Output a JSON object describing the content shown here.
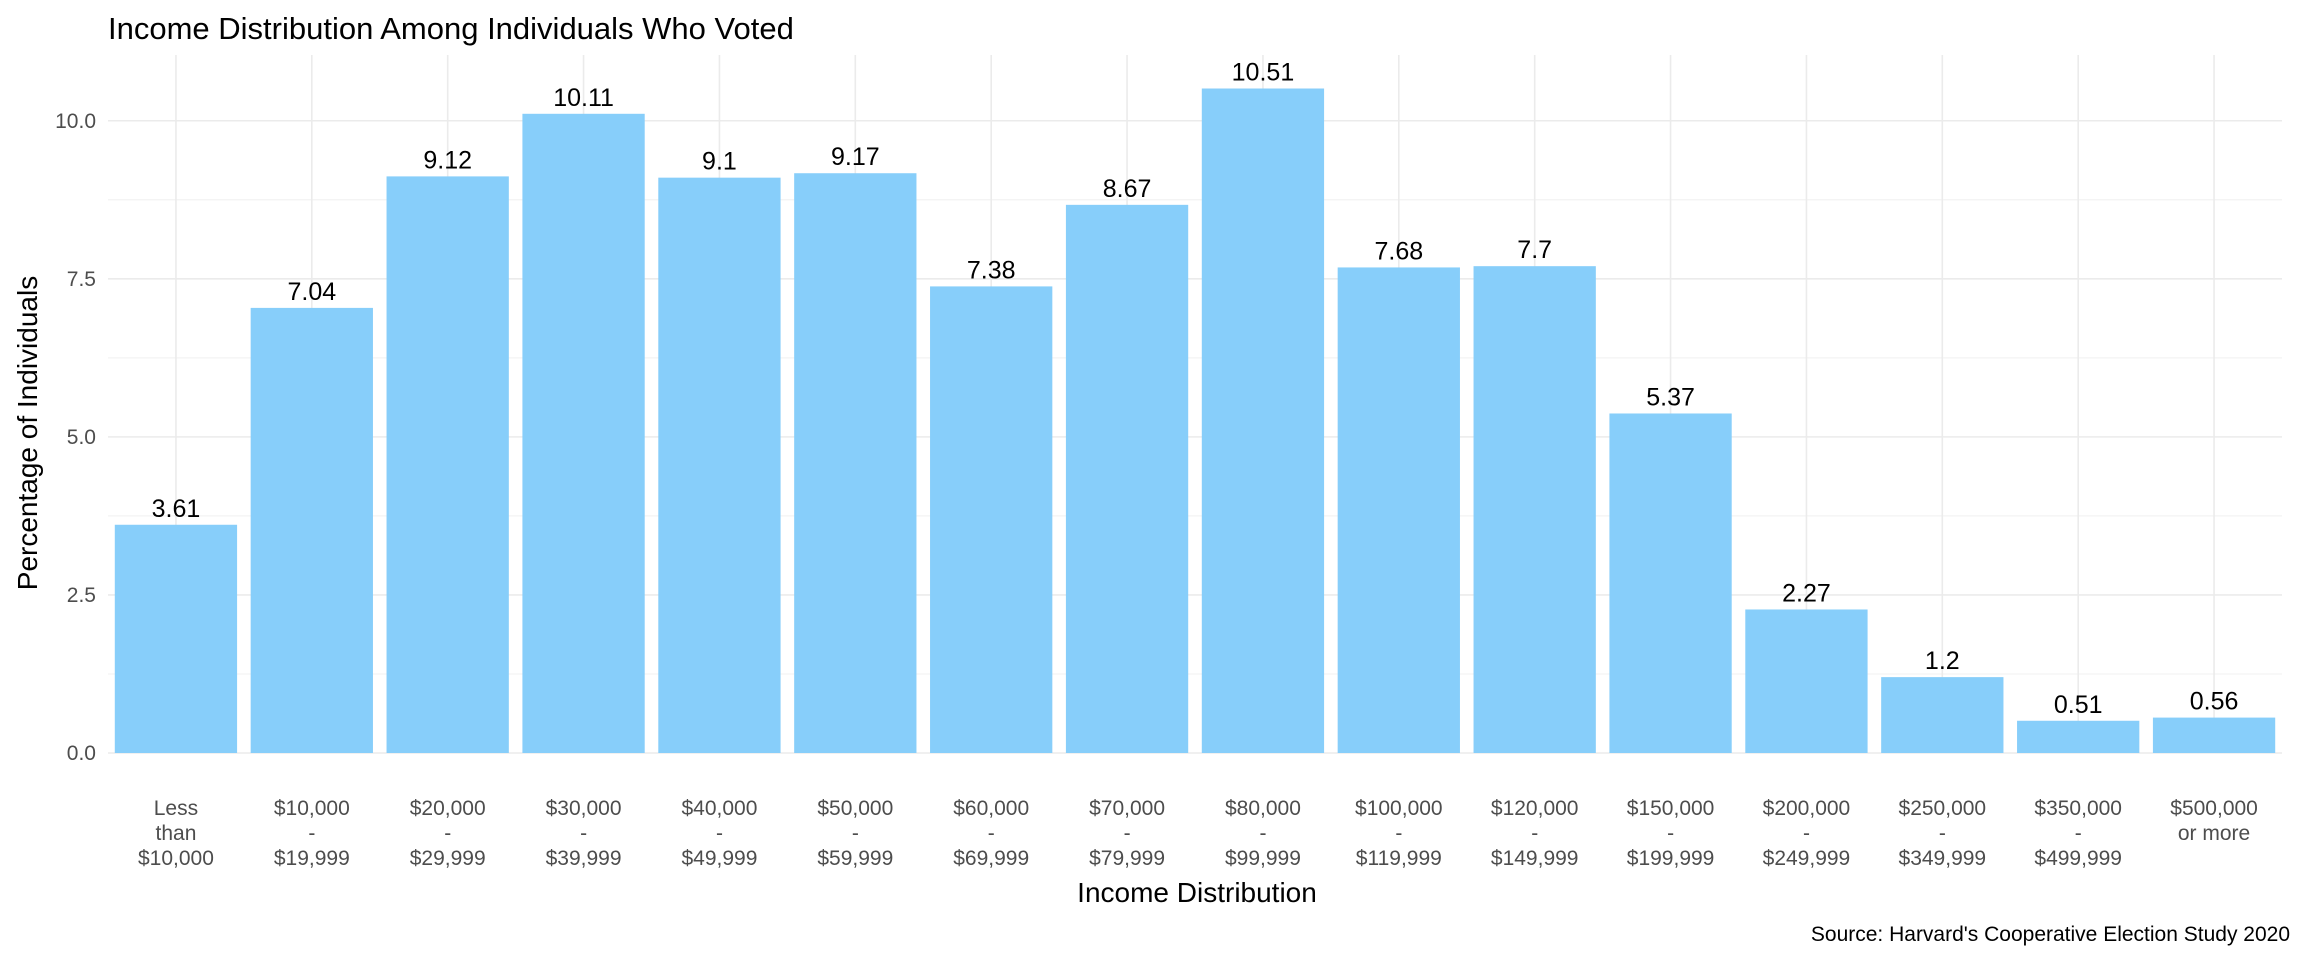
{
  "chart_data": {
    "type": "bar",
    "title": "Income Distribution Among Individuals Who Voted",
    "xlabel": "Income Distribution",
    "ylabel": "Percentage of Individuals",
    "caption": "Source: Harvard's Cooperative Election Study 2020",
    "categories": [
      [
        "Less",
        "than",
        "$10,000"
      ],
      [
        "$10,000",
        "-",
        "$19,999"
      ],
      [
        "$20,000",
        "-",
        "$29,999"
      ],
      [
        "$30,000",
        "-",
        "$39,999"
      ],
      [
        "$40,000",
        "-",
        "$49,999"
      ],
      [
        "$50,000",
        "-",
        "$59,999"
      ],
      [
        "$60,000",
        "-",
        "$69,999"
      ],
      [
        "$70,000",
        "-",
        "$79,999"
      ],
      [
        "$80,000",
        "-",
        "$99,999"
      ],
      [
        "$100,000",
        "-",
        "$119,999"
      ],
      [
        "$120,000",
        "-",
        "$149,999"
      ],
      [
        "$150,000",
        "-",
        "$199,999"
      ],
      [
        "$200,000",
        "-",
        "$249,999"
      ],
      [
        "$250,000",
        "-",
        "$349,999"
      ],
      [
        "$350,000",
        "-",
        "$499,999"
      ],
      [
        "$500,000",
        "or more"
      ]
    ],
    "values": [
      3.61,
      7.04,
      9.12,
      10.11,
      9.1,
      9.17,
      7.38,
      8.67,
      10.51,
      7.68,
      7.7,
      5.37,
      2.27,
      1.2,
      0.51,
      0.56
    ],
    "value_labels": [
      "3.61",
      "7.04",
      "9.12",
      "10.11",
      "9.1",
      "9.17",
      "7.38",
      "8.67",
      "10.51",
      "7.68",
      "7.7",
      "5.37",
      "2.27",
      "1.2",
      "0.51",
      "0.56"
    ],
    "yticks": [
      0,
      2.5,
      5,
      7.5,
      10
    ],
    "ytick_labels": [
      "0.0",
      "2.5",
      "5.0",
      "7.5",
      "10.0"
    ],
    "ylim": [
      0,
      11.04
    ],
    "grid": true,
    "legend": false,
    "bar_color": "#87CEFA"
  }
}
